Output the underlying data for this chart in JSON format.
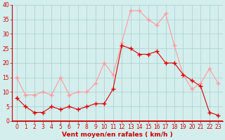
{
  "hours": [
    0,
    1,
    2,
    3,
    4,
    5,
    6,
    7,
    8,
    9,
    10,
    11,
    12,
    13,
    14,
    15,
    16,
    17,
    18,
    19,
    20,
    21,
    22,
    23
  ],
  "wind_mean": [
    8,
    5,
    3,
    3,
    5,
    4,
    5,
    4,
    5,
    6,
    6,
    11,
    26,
    25,
    23,
    23,
    24,
    20,
    20,
    16,
    14,
    12,
    3,
    2
  ],
  "wind_gust": [
    15,
    9,
    9,
    10,
    9,
    15,
    9,
    10,
    10,
    13,
    20,
    16,
    27,
    38,
    38,
    35,
    33,
    37,
    26,
    16,
    11,
    13,
    18,
    13
  ],
  "mean_color": "#dd0000",
  "gust_color": "#ff9999",
  "bg_color": "#d4eeee",
  "grid_color": "#aacccc",
  "tick_color": "#cc0000",
  "xlabel": "Vent moyen/en rafales ( km/h )",
  "ylim": [
    0,
    40
  ],
  "yticks": [
    0,
    5,
    10,
    15,
    20,
    25,
    30,
    35,
    40
  ],
  "title_fontsize": 6,
  "axis_fontsize": 5.5,
  "xlabel_fontsize": 6.5
}
